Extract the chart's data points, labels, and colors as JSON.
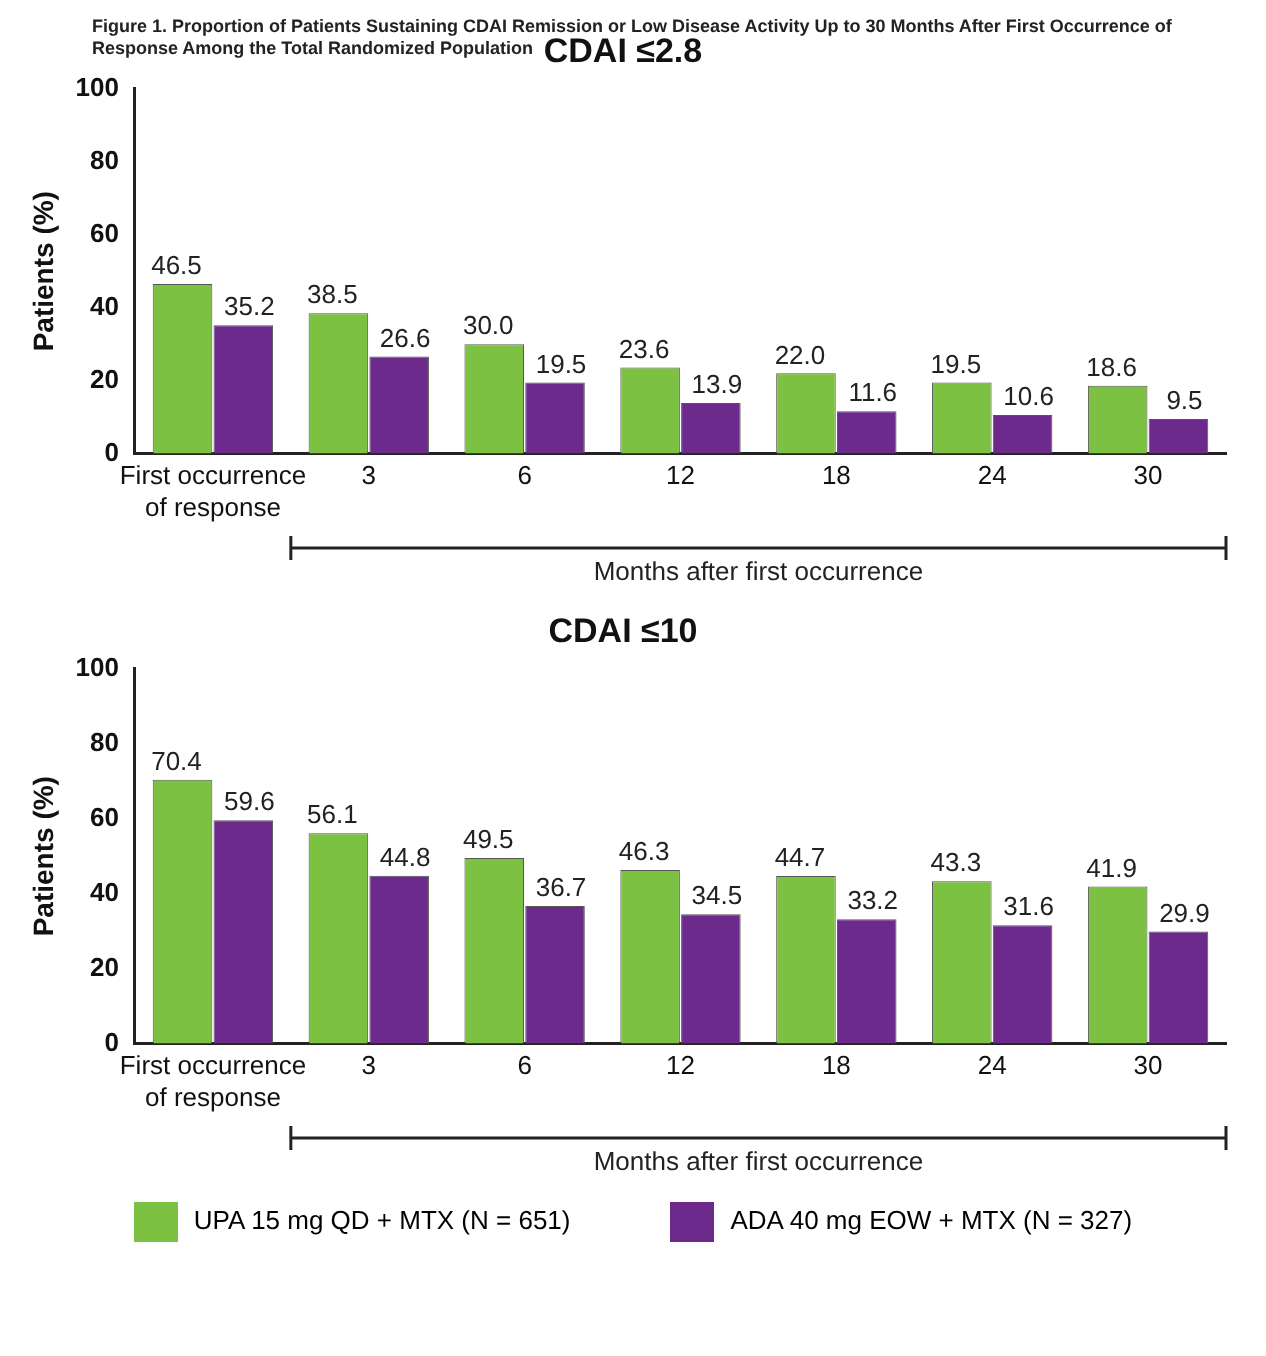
{
  "chart_data": [
    {
      "type": "bar",
      "title": "CDAI ≤2.8",
      "ylabel": "Patients (%)",
      "xlabel": "Months after first occurrence",
      "annotations": [
        "Figure 1. Proportion of Patients Sustaining CDAI Remission or Low Disease Activity Up to 30 Months After First Occurrence of Response Among the Total Randomized Population"
      ],
      "categories": [
        "First occurrence of response",
        "3",
        "6",
        "12",
        "18",
        "24",
        "30"
      ],
      "series": [
        {
          "color": "#7dc142",
          "values": [
            46.5,
            38.5,
            30.0,
            23.6,
            22.0,
            19.5,
            18.6
          ],
          "value_labels": [
            "46.5",
            "38.5",
            "30.0",
            "23.6",
            "22.0",
            "19.5",
            "18.6"
          ]
        },
        {
          "color": "#6b2a8c",
          "values": [
            35.2,
            26.6,
            19.5,
            13.9,
            11.6,
            10.6,
            9.5
          ],
          "value_labels": [
            "35.2",
            "26.6",
            "19.5",
            "13.9",
            "11.6",
            "10.6",
            "9.5"
          ]
        }
      ],
      "ylim": [
        0,
        100
      ],
      "yticks": [
        0,
        20,
        40,
        60,
        80,
        100
      ],
      "grid": false,
      "legend": false
    },
    {
      "type": "bar",
      "title": "CDAI ≤10",
      "ylabel": "Patients (%)",
      "xlabel": "Months after first occurrence",
      "categories": [
        "First occurrence of response",
        "3",
        "6",
        "12",
        "18",
        "24",
        "30"
      ],
      "series": [
        {
          "name": "UPA 15 mg QD + MTX (N = 651)",
          "color": "#7dc142",
          "values": [
            70.4,
            56.1,
            49.5,
            46.3,
            44.7,
            43.3,
            41.9
          ],
          "value_labels": [
            "70.4",
            "56.1",
            "49.5",
            "46.3",
            "44.7",
            "43.3",
            "41.9"
          ]
        },
        {
          "name": "ADA 40 mg EOW + MTX (N = 327)",
          "color": "#6b2a8c",
          "values": [
            59.6,
            44.8,
            36.7,
            34.5,
            33.2,
            31.6,
            29.9
          ],
          "value_labels": [
            "59.6",
            "44.8",
            "36.7",
            "34.5",
            "33.2",
            "31.6",
            "29.9"
          ]
        }
      ],
      "ylim": [
        0,
        100
      ],
      "yticks": [
        0,
        20,
        40,
        60,
        80,
        100
      ],
      "grid": false,
      "legend": "bottom"
    }
  ]
}
